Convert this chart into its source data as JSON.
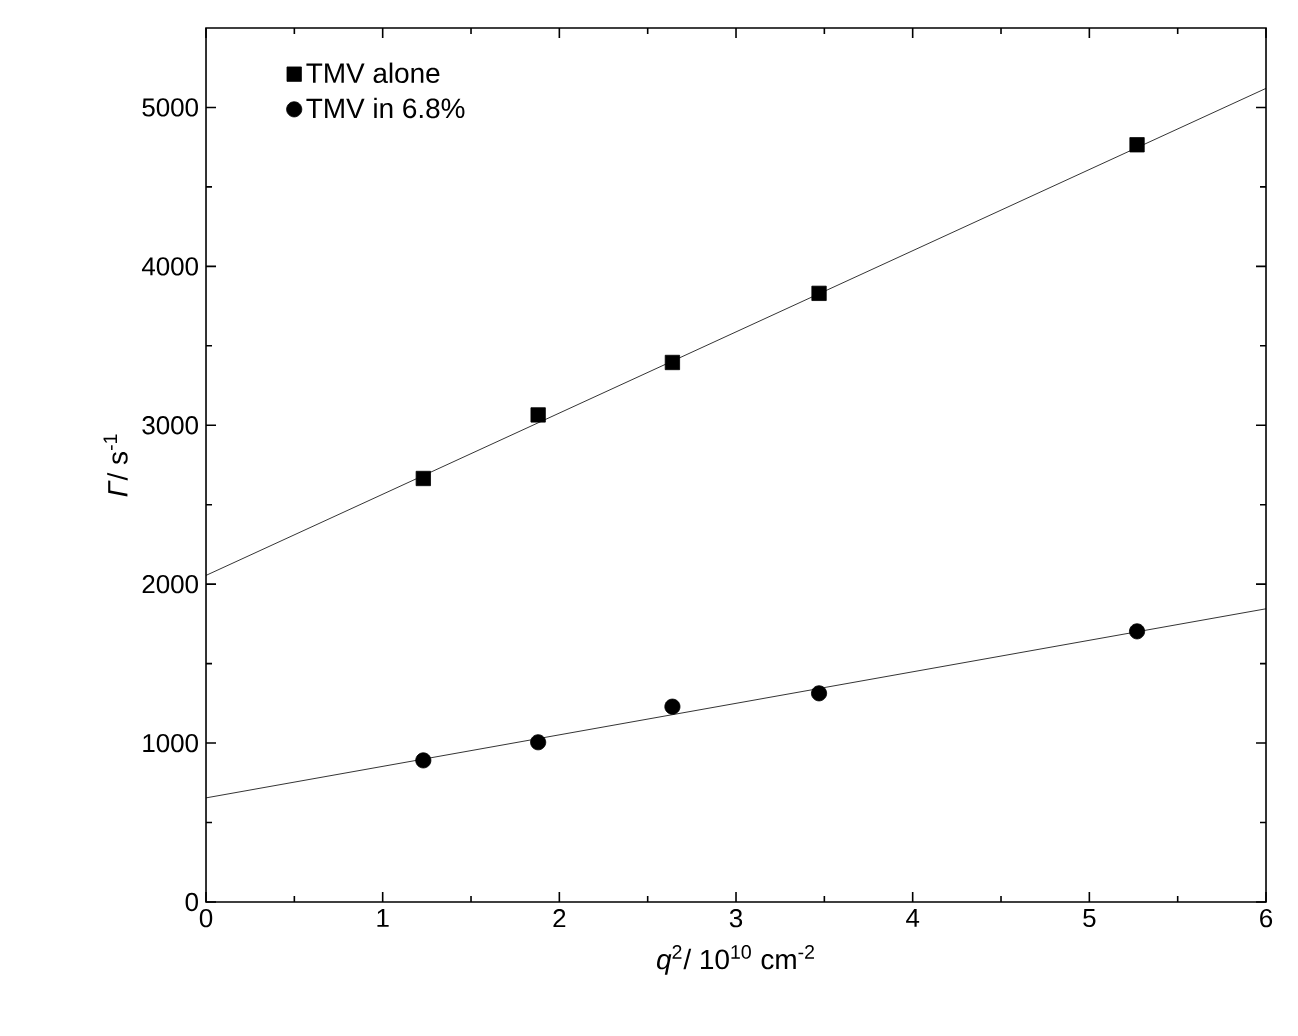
{
  "chart_data": {
    "type": "scatter",
    "xlabel": "*q*$^{2}$/ 10$^{10}$ cm$^{-2}$",
    "ylabel": "*Γ*/ s$^{-1}$",
    "xlim": [
      0,
      6
    ],
    "xticks": [
      0,
      1,
      2,
      3,
      4,
      5,
      6
    ],
    "ylim": [
      0,
      5500
    ],
    "yticks": [
      0,
      1000,
      2000,
      3000,
      4000,
      5000
    ],
    "legend": "top left",
    "grid": false,
    "series": [
      {
        "name": "TMV alone",
        "color": "#000000",
        "marker": "square",
        "x": [
          1.23,
          1.88,
          2.64,
          3.47,
          5.27
        ],
        "values": [
          2665,
          3065,
          3395,
          3830,
          4765
        ]
      },
      {
        "name": "TMV in 6.8%",
        "color": "#000000",
        "marker": "circle",
        "x": [
          1.23,
          1.88,
          2.64,
          3.47,
          5.27
        ],
        "values": [
          891,
          1005,
          1229,
          1313,
          1703
        ]
      },
      {
        "type": "line",
        "color": "#000000",
        "marker": "none",
        "line_style": "solid",
        "x": [
          0,
          6
        ],
        "values": [
          2055,
          5120
        ]
      },
      {
        "type": "line",
        "color": "#000000",
        "marker": "none",
        "line_style": "solid",
        "x": [
          0,
          6
        ],
        "values": [
          655,
          1845
        ]
      }
    ]
  }
}
